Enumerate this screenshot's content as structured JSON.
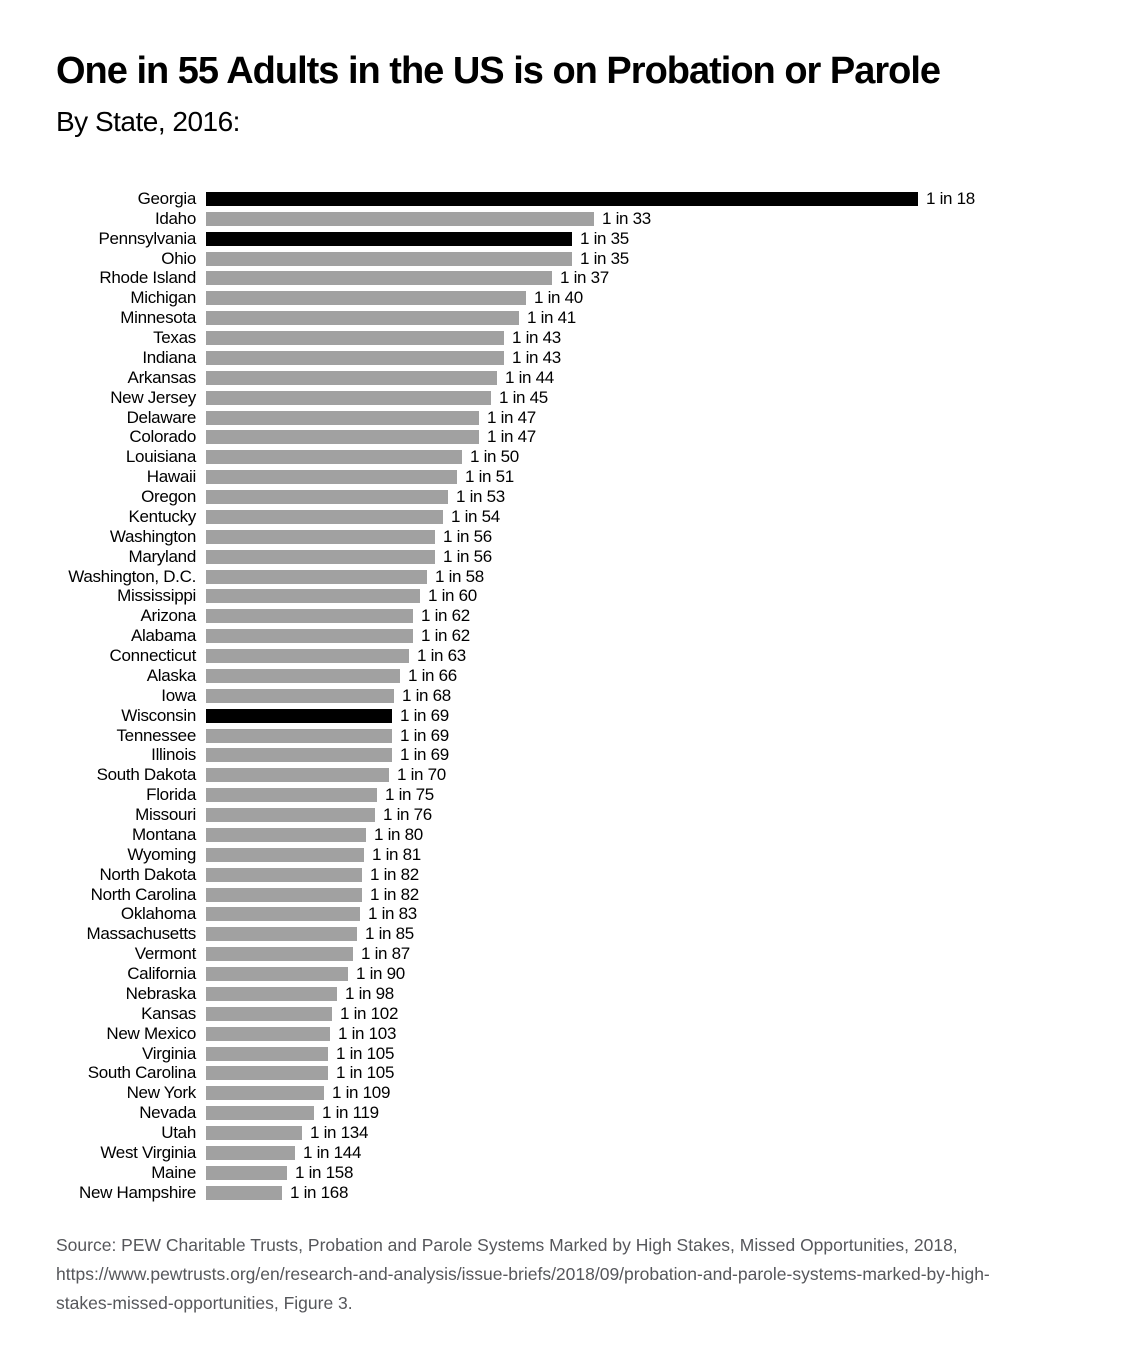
{
  "chart_data": {
    "type": "bar",
    "orientation": "horizontal",
    "title": "One in 55 Adults in the US is on Probation or Parole",
    "subtitle": "By State, 2016:",
    "value_label_format": "1 in N",
    "note": "bar length proportional to rate 1/N; highlighted states drawn black",
    "colors": {
      "bar": "#a1a1a1",
      "highlight": "#000000",
      "label_text": "#000000",
      "source_text": "#56575b"
    },
    "bars": [
      {
        "state": "Georgia",
        "value": 18,
        "label": "1 in 18",
        "highlight": true
      },
      {
        "state": "Idaho",
        "value": 33,
        "label": "1 in 33",
        "highlight": false
      },
      {
        "state": "Pennsylvania",
        "value": 35,
        "label": "1 in 35",
        "highlight": true
      },
      {
        "state": "Ohio",
        "value": 35,
        "label": "1 in 35",
        "highlight": false
      },
      {
        "state": "Rhode Island",
        "value": 37,
        "label": "1 in 37",
        "highlight": false
      },
      {
        "state": "Michigan",
        "value": 40,
        "label": "1 in 40",
        "highlight": false
      },
      {
        "state": "Minnesota",
        "value": 41,
        "label": "1 in 41",
        "highlight": false
      },
      {
        "state": "Texas",
        "value": 43,
        "label": "1 in 43",
        "highlight": false
      },
      {
        "state": "Indiana",
        "value": 43,
        "label": "1 in 43",
        "highlight": false
      },
      {
        "state": "Arkansas",
        "value": 44,
        "label": "1 in 44",
        "highlight": false
      },
      {
        "state": "New Jersey",
        "value": 45,
        "label": "1 in 45",
        "highlight": false
      },
      {
        "state": "Delaware",
        "value": 47,
        "label": "1 in 47",
        "highlight": false
      },
      {
        "state": "Colorado",
        "value": 47,
        "label": "1 in 47",
        "highlight": false
      },
      {
        "state": "Louisiana",
        "value": 50,
        "label": "1 in 50",
        "highlight": false
      },
      {
        "state": "Hawaii",
        "value": 51,
        "label": "1 in 51",
        "highlight": false
      },
      {
        "state": "Oregon",
        "value": 53,
        "label": "1 in 53",
        "highlight": false
      },
      {
        "state": "Kentucky",
        "value": 54,
        "label": "1 in 54",
        "highlight": false
      },
      {
        "state": "Washington",
        "value": 56,
        "label": "1 in 56",
        "highlight": false
      },
      {
        "state": "Maryland",
        "value": 56,
        "label": "1 in 56",
        "highlight": false
      },
      {
        "state": "Washington, D.C.",
        "value": 58,
        "label": "1 in 58",
        "highlight": false
      },
      {
        "state": "Mississippi",
        "value": 60,
        "label": "1 in 60",
        "highlight": false
      },
      {
        "state": "Arizona",
        "value": 62,
        "label": "1 in 62",
        "highlight": false
      },
      {
        "state": "Alabama",
        "value": 62,
        "label": "1 in 62",
        "highlight": false
      },
      {
        "state": "Connecticut",
        "value": 63,
        "label": "1 in 63",
        "highlight": false
      },
      {
        "state": "Alaska",
        "value": 66,
        "label": "1 in 66",
        "highlight": false
      },
      {
        "state": "Iowa",
        "value": 68,
        "label": "1 in 68",
        "highlight": false
      },
      {
        "state": "Wisconsin",
        "value": 69,
        "label": "1 in 69",
        "highlight": true
      },
      {
        "state": "Tennessee",
        "value": 69,
        "label": "1 in 69",
        "highlight": false
      },
      {
        "state": "Illinois",
        "value": 69,
        "label": "1 in 69",
        "highlight": false
      },
      {
        "state": "South Dakota",
        "value": 70,
        "label": "1 in 70",
        "highlight": false
      },
      {
        "state": "Florida",
        "value": 75,
        "label": "1 in 75",
        "highlight": false
      },
      {
        "state": "Missouri",
        "value": 76,
        "label": "1 in 76",
        "highlight": false
      },
      {
        "state": "Montana",
        "value": 80,
        "label": "1 in 80",
        "highlight": false
      },
      {
        "state": "Wyoming",
        "value": 81,
        "label": "1 in 81",
        "highlight": false
      },
      {
        "state": "North Dakota",
        "value": 82,
        "label": "1 in 82",
        "highlight": false
      },
      {
        "state": "North Carolina",
        "value": 82,
        "label": "1 in 82",
        "highlight": false
      },
      {
        "state": "Oklahoma",
        "value": 83,
        "label": "1 in 83",
        "highlight": false
      },
      {
        "state": "Massachusetts",
        "value": 85,
        "label": "1 in 85",
        "highlight": false
      },
      {
        "state": "Vermont",
        "value": 87,
        "label": "1 in 87",
        "highlight": false
      },
      {
        "state": "California",
        "value": 90,
        "label": "1 in 90",
        "highlight": false
      },
      {
        "state": "Nebraska",
        "value": 98,
        "label": "1 in 98",
        "highlight": false
      },
      {
        "state": "Kansas",
        "value": 102,
        "label": "1 in 102",
        "highlight": false
      },
      {
        "state": "New Mexico",
        "value": 103,
        "label": "1 in 103",
        "highlight": false
      },
      {
        "state": "Virginia",
        "value": 105,
        "label": "1 in 105",
        "highlight": false
      },
      {
        "state": "South Carolina",
        "value": 105,
        "label": "1 in 105",
        "highlight": false
      },
      {
        "state": "New York",
        "value": 109,
        "label": "1 in 109",
        "highlight": false
      },
      {
        "state": "Nevada",
        "value": 119,
        "label": "1 in 119",
        "highlight": false
      },
      {
        "state": "Utah",
        "value": 134,
        "label": "1 in 134",
        "highlight": false
      },
      {
        "state": "West Virginia",
        "value": 144,
        "label": "1 in 144",
        "highlight": false
      },
      {
        "state": "Maine",
        "value": 158,
        "label": "1 in 158",
        "highlight": false
      },
      {
        "state": "New Hampshire",
        "value": 168,
        "label": "1 in 168",
        "highlight": false
      }
    ]
  },
  "source_note": {
    "lines": [
      "Source: PEW Charitable Trusts, Probation and Parole Systems Marked by High Stakes, Missed Opportunities, 2018,",
      "https://www.pewtrusts.org/en/research-and-analysis/issue-briefs/2018/09/probation-and-parole-systems-marked-by-high-",
      "stakes-missed-opportunities, Figure 3."
    ]
  }
}
